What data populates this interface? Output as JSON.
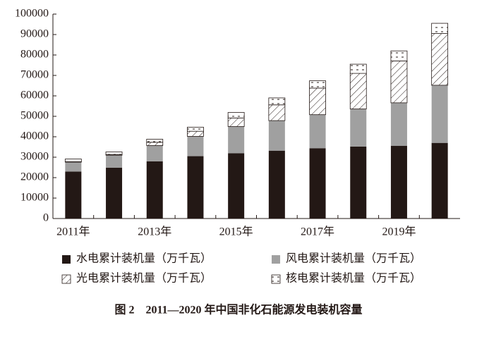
{
  "chart_data": {
    "type": "stacked-bar",
    "caption": "图 2　2011—2020 年中国非化石能源发电装机容量",
    "categories": [
      "2011年",
      null,
      "2013年",
      null,
      "2015年",
      null,
      "2017年",
      null,
      "2019年",
      null
    ],
    "series": [
      {
        "name": "水电累计装机量（万千瓦）",
        "color": "#231815",
        "values": [
          23000,
          24900,
          28000,
          30500,
          31900,
          33200,
          34400,
          35200,
          35600,
          37000
        ]
      },
      {
        "name": "风电累计装机量（万千瓦）",
        "color": "#a0a0a0",
        "values": [
          4600,
          6100,
          7700,
          9700,
          13100,
          14700,
          16400,
          18400,
          21000,
          28200
        ]
      },
      {
        "name": "光电累计装机量（万千瓦）",
        "color": "#231815",
        "pattern": "hatch",
        "values": [
          200,
          300,
          1600,
          2500,
          4200,
          7700,
          13000,
          17400,
          20500,
          25300
        ]
      },
      {
        "name": "核电累计装机量（万千瓦）",
        "color": "#231815",
        "pattern": "dots",
        "values": [
          1300,
          1300,
          1500,
          2000,
          2700,
          3400,
          3600,
          4500,
          4900,
          5000
        ]
      }
    ],
    "ylim": [
      0,
      100000
    ],
    "yticks": [
      0,
      10000,
      20000,
      30000,
      40000,
      50000,
      60000,
      70000,
      80000,
      90000,
      100000
    ],
    "grid": false
  }
}
